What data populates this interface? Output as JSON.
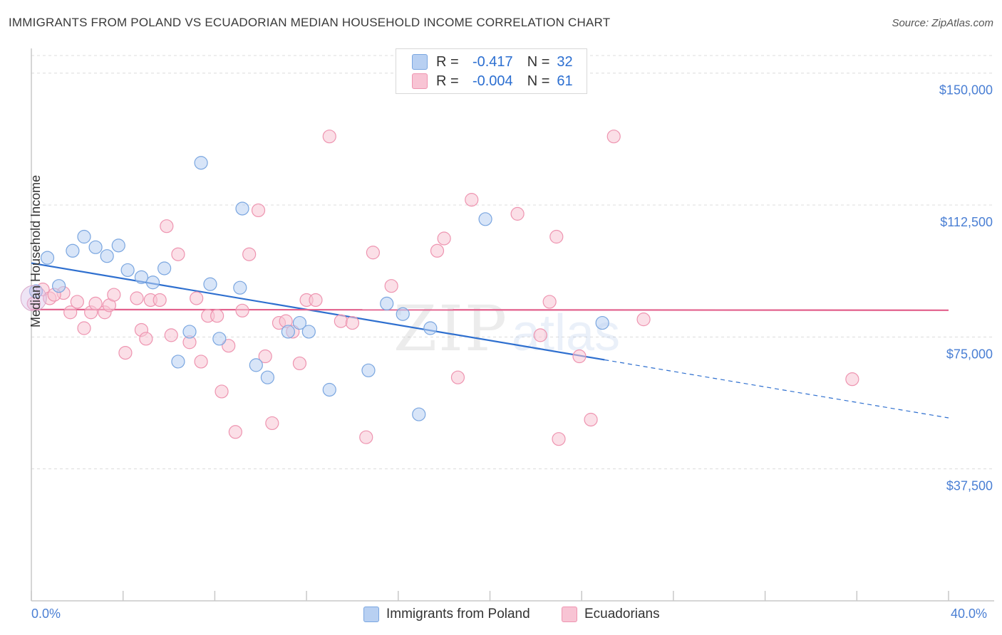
{
  "title": "IMMIGRANTS FROM POLAND VS ECUADORIAN MEDIAN HOUSEHOLD INCOME CORRELATION CHART",
  "source": "Source: ZipAtlas.com",
  "legend": {
    "r_label": "R =",
    "n_label": "N =",
    "series": [
      {
        "name": "Immigrants from Poland",
        "r": "-0.417",
        "n": "32",
        "fill": "#b8d0f2",
        "stroke": "#7aa6e0"
      },
      {
        "name": "Ecuadorians",
        "r": "-0.004",
        "n": "61",
        "fill": "#f8c4d4",
        "stroke": "#ee94b0"
      }
    ]
  },
  "chart_data": {
    "type": "scatter",
    "title": "IMMIGRANTS FROM POLAND VS ECUADORIAN MEDIAN HOUSEHOLD INCOME CORRELATION CHART",
    "xlabel": "",
    "ylabel": "Median Household Income",
    "xlim": [
      0,
      40
    ],
    "ylim": [
      0,
      155000
    ],
    "x_tick_labels": [
      "0.0%",
      "40.0%"
    ],
    "y_ticks": [
      37500,
      75000,
      112500,
      150000
    ],
    "y_tick_labels": [
      "$37,500",
      "$75,000",
      "$112,500",
      "$150,000"
    ],
    "series": [
      {
        "name": "Immigrants from Poland",
        "color": "#4a7fd4",
        "points": [
          [
            0.2,
            88000
          ],
          [
            0.7,
            97500
          ],
          [
            1.2,
            89500
          ],
          [
            1.8,
            99500
          ],
          [
            2.3,
            103500
          ],
          [
            2.8,
            100500
          ],
          [
            3.3,
            98000
          ],
          [
            3.8,
            101000
          ],
          [
            4.2,
            94000
          ],
          [
            4.8,
            92000
          ],
          [
            5.3,
            90500
          ],
          [
            5.8,
            94500
          ],
          [
            6.4,
            68000
          ],
          [
            6.9,
            76500
          ],
          [
            7.4,
            124500
          ],
          [
            7.8,
            90000
          ],
          [
            8.2,
            74500
          ],
          [
            9.1,
            89000
          ],
          [
            9.2,
            111500
          ],
          [
            9.8,
            67000
          ],
          [
            10.3,
            63500
          ],
          [
            11.2,
            76500
          ],
          [
            11.7,
            79000
          ],
          [
            12.1,
            76500
          ],
          [
            13.0,
            60000
          ],
          [
            14.7,
            65500
          ],
          [
            15.5,
            84500
          ],
          [
            16.2,
            81500
          ],
          [
            16.9,
            53000
          ],
          [
            17.4,
            77500
          ],
          [
            19.8,
            108500
          ],
          [
            24.9,
            79000
          ]
        ],
        "trend": {
          "x0": 0,
          "y0": 96000,
          "x1": 25.0,
          "y1": 68500,
          "dash_to_x": 40,
          "dash_to_y": 52000
        }
      },
      {
        "name": "Ecuadorians",
        "color": "#e76a94",
        "points": [
          [
            0.1,
            84500
          ],
          [
            0.5,
            88500
          ],
          [
            0.8,
            86000
          ],
          [
            1.4,
            87500
          ],
          [
            1.7,
            82000
          ],
          [
            2.0,
            85000
          ],
          [
            2.3,
            77500
          ],
          [
            2.6,
            82000
          ],
          [
            2.8,
            84500
          ],
          [
            3.2,
            82000
          ],
          [
            3.4,
            84000
          ],
          [
            3.6,
            87000
          ],
          [
            4.1,
            70500
          ],
          [
            4.6,
            86000
          ],
          [
            4.8,
            77000
          ],
          [
            5.0,
            74500
          ],
          [
            5.2,
            85500
          ],
          [
            5.6,
            85500
          ],
          [
            5.9,
            106500
          ],
          [
            6.1,
            75500
          ],
          [
            6.4,
            98500
          ],
          [
            6.9,
            73500
          ],
          [
            7.2,
            86000
          ],
          [
            7.4,
            68000
          ],
          [
            7.7,
            81000
          ],
          [
            8.1,
            81000
          ],
          [
            8.3,
            59500
          ],
          [
            8.6,
            72500
          ],
          [
            8.9,
            48000
          ],
          [
            9.2,
            82500
          ],
          [
            9.5,
            98500
          ],
          [
            9.9,
            111000
          ],
          [
            10.2,
            69500
          ],
          [
            10.5,
            50500
          ],
          [
            10.8,
            79000
          ],
          [
            11.1,
            79500
          ],
          [
            11.4,
            76500
          ],
          [
            11.7,
            67500
          ],
          [
            12.0,
            85500
          ],
          [
            12.4,
            85500
          ],
          [
            13.0,
            132000
          ],
          [
            13.5,
            79500
          ],
          [
            14.0,
            79000
          ],
          [
            14.6,
            46500
          ],
          [
            14.9,
            99000
          ],
          [
            15.7,
            89500
          ],
          [
            17.7,
            99500
          ],
          [
            18.0,
            103000
          ],
          [
            18.6,
            63500
          ],
          [
            19.2,
            114000
          ],
          [
            21.2,
            110000
          ],
          [
            22.2,
            75500
          ],
          [
            22.6,
            85000
          ],
          [
            22.9,
            103500
          ],
          [
            23.0,
            46000
          ],
          [
            23.9,
            69500
          ],
          [
            24.4,
            51500
          ],
          [
            25.4,
            132000
          ],
          [
            26.7,
            80000
          ],
          [
            35.8,
            63000
          ],
          [
            1.0,
            87000
          ]
        ],
        "trend": {
          "x0": 0,
          "y0": 82800,
          "x1": 40,
          "y1": 82600
        }
      }
    ],
    "watermark": "ZIPatlas"
  }
}
